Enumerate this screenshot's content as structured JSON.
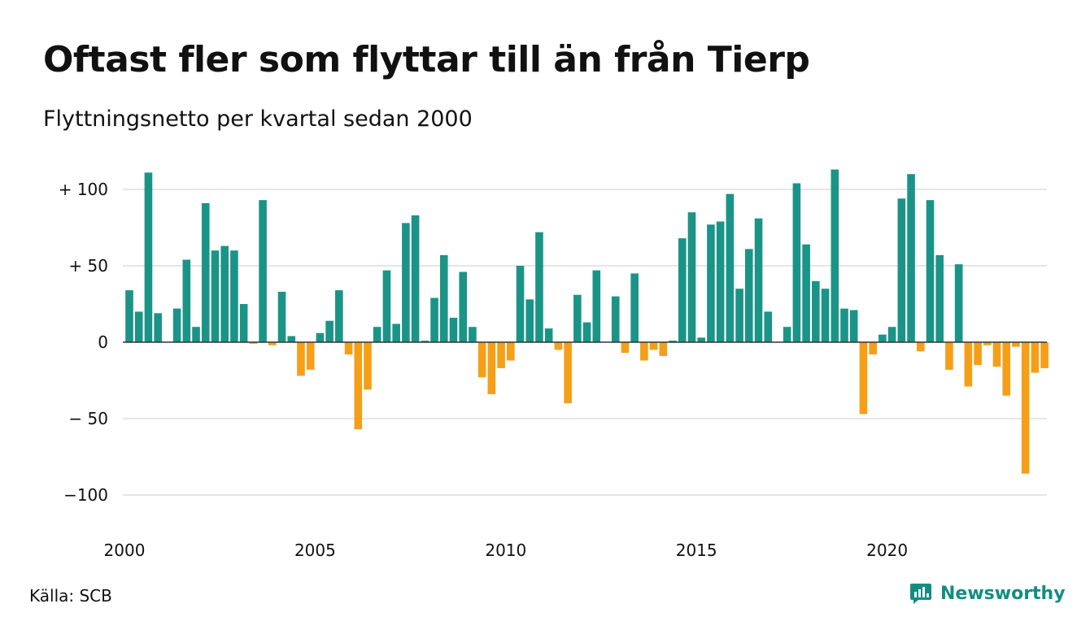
{
  "title": "Oftast fler som flyttar till än från Tierp",
  "subtitle": "Flyttningsnetto per kvartal sedan 2000",
  "source": "Källa: SCB",
  "brand": {
    "name": "Newsworthy",
    "icon": "newsworthy-chart-bubble-icon",
    "color": "#138d81"
  },
  "colors": {
    "positive": "#1b9488",
    "negative": "#f59f18",
    "gridline": "#dddddd",
    "zeroline": "#333333"
  },
  "chart_data": {
    "type": "bar",
    "title": "Oftast fler som flyttar till än från Tierp",
    "subtitle": "Flyttningsnetto per kvartal sedan 2000",
    "xlabel": "",
    "ylabel": "",
    "ylim": [
      -100,
      110
    ],
    "grid": true,
    "legend": "none",
    "y_ticks": [
      {
        "value": 100,
        "label": "+ 100"
      },
      {
        "value": 50,
        "label": "+  50"
      },
      {
        "value": 0,
        "label": "0"
      },
      {
        "value": -50,
        "label": "− 50"
      },
      {
        "value": -100,
        "label": "−100"
      }
    ],
    "x_ticks": [
      "2000",
      "2005",
      "2010",
      "2015",
      "2020"
    ],
    "start_year": 2000,
    "quarters_per_year": 4,
    "values": [
      34,
      20,
      111,
      19,
      0,
      22,
      54,
      10,
      91,
      60,
      63,
      60,
      25,
      -1,
      93,
      -2,
      33,
      4,
      -22,
      -18,
      6,
      14,
      34,
      -8,
      -57,
      -31,
      10,
      47,
      12,
      78,
      83,
      1,
      29,
      57,
      16,
      46,
      10,
      -23,
      -34,
      -17,
      -12,
      50,
      28,
      72,
      9,
      -5,
      -40,
      31,
      13,
      47,
      0,
      30,
      -7,
      45,
      -12,
      -5,
      -9,
      1,
      68,
      85,
      3,
      77,
      79,
      97,
      35,
      61,
      81,
      20,
      0,
      10,
      104,
      64,
      40,
      35,
      113,
      22,
      21,
      -47,
      -8,
      5,
      10,
      94,
      110,
      -6,
      93,
      57,
      -18,
      51,
      -29,
      -15,
      -2,
      -16,
      -35,
      -3,
      -86,
      -20,
      -17
    ]
  }
}
